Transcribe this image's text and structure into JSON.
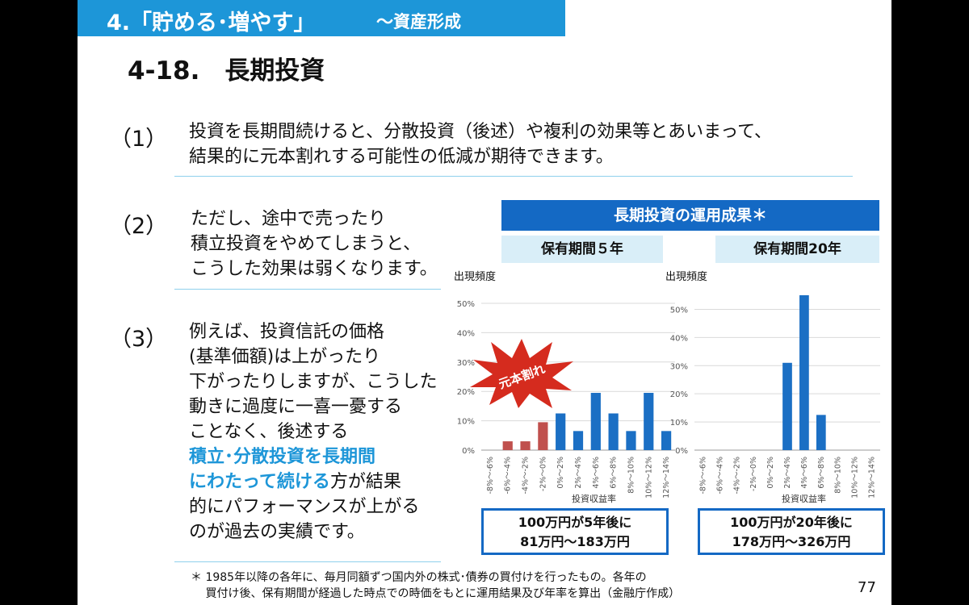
{
  "header": {
    "section": "4.「貯める･増やす」",
    "section_sub": "～資産形成"
  },
  "title": "4-18.　長期投資",
  "points": [
    {
      "num": "（1）",
      "lines": [
        "投資を長期間続けると、分散投資（後述）や複利の効果等とあいまって、",
        "結果的に元本割れする可能性の低減が期待できます。"
      ]
    },
    {
      "num": "（2）",
      "lines": [
        "ただし、途中で売ったり",
        "積立投資をやめてしまうと、",
        "こうした効果は弱くなります。"
      ]
    },
    {
      "num": "（3）",
      "lines_before": [
        "例えば、投資信託の価格",
        "(基準価額)は上がったり",
        "下がったりしますが、こうした",
        "動きに過度に一喜一憂する",
        "ことなく、後述する"
      ],
      "highlight_1": "積立･分散投資を長期間",
      "highlight_2": "にわたって続ける",
      "after_highlight": "方が結果",
      "lines_after": [
        "的にパフォーマンスが上がる",
        "のが過去の実績です。"
      ]
    }
  ],
  "chart_title": "長期投資の運用成果＊",
  "burst_label": "元本割れ",
  "chart_data": [
    {
      "type": "bar",
      "title": "保有期間５年",
      "ylabel": "出現頻度",
      "xlabel": "投資収益率",
      "categories": [
        "-8%～-6%",
        "-6%～-4%",
        "-4%～-2%",
        "-2%～0%",
        "0%～2%",
        "2%～4%",
        "4%～6%",
        "6%～8%",
        "8%～10%",
        "10%～12%",
        "12%～14%"
      ],
      "values": [
        0,
        3,
        3,
        9.5,
        12.5,
        6.5,
        19.5,
        12.5,
        6.5,
        19.5,
        6.5
      ],
      "yticks": [
        "0%",
        "10%",
        "20%",
        "30%",
        "40%",
        "50%"
      ],
      "ylim": [
        0,
        50
      ],
      "grid": true,
      "colors": {
        "loss": "#c0504d",
        "gain": "#1b6fc4"
      }
    },
    {
      "type": "bar",
      "title": "保有期間20年",
      "ylabel": "出現頻度",
      "xlabel": "投資収益率",
      "categories": [
        "-8%～-6%",
        "-6%～-4%",
        "-4%～-2%",
        "-2%～0%",
        "0%～2%",
        "2%～4%",
        "4%～6%",
        "6%～8%",
        "8%～10%",
        "10%～12%",
        "12%～14%"
      ],
      "values": [
        0,
        0,
        0,
        0,
        0,
        31,
        55,
        12.5,
        0,
        0,
        0
      ],
      "yticks": [
        "0%",
        "10%",
        "20%",
        "30%",
        "40%",
        "50%"
      ],
      "ylim": [
        0,
        55
      ],
      "grid": true,
      "colors": {
        "loss": "#c0504d",
        "gain": "#1b6fc4"
      }
    }
  ],
  "outcomes": [
    {
      "line1": "100万円が5年後に",
      "line2": "81万円～183万円"
    },
    {
      "line1": "100万円が20年後に",
      "line2": "178万円～326万円"
    }
  ],
  "footnote": [
    "＊ 1985年以降の各年に、毎月同額ずつ国内外の株式･債券の買付けを行ったもの。各年の",
    "　 買付け後、保有期間が経過した時点での時価をもとに運用結果及び年率を算出（金融庁作成）"
  ],
  "page_number": "77"
}
